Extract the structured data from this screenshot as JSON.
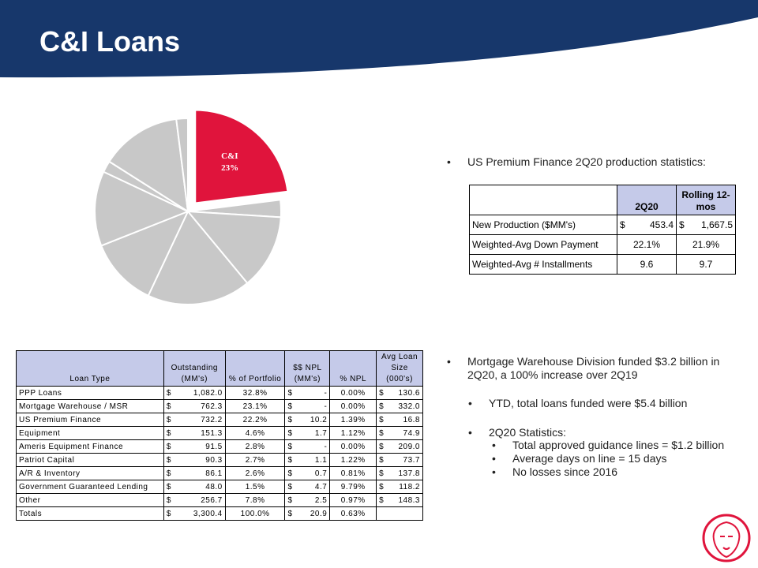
{
  "header": {
    "title": "C&I Loans"
  },
  "chart_data": {
    "type": "pie",
    "categories": [
      "C&I",
      null,
      null,
      null,
      null,
      null,
      null,
      null,
      null
    ],
    "values": [
      23,
      3,
      13,
      18,
      12,
      13,
      2,
      14,
      2
    ],
    "value_labels": [
      "23%",
      null,
      null,
      null,
      null,
      null,
      null,
      null,
      null
    ],
    "colors": [
      "#e0143c",
      "#c8c8c8",
      "#c8c8c8",
      "#c8c8c8",
      "#c8c8c8",
      "#c8c8c8",
      "#c8c8c8",
      "#c8c8c8",
      "#c8c8c8"
    ]
  },
  "bullets": [
    {
      "level": 0,
      "text": "US Premium Finance 2Q20 production statistics:"
    },
    {
      "level": 0,
      "text": "Mortgage Warehouse Division funded $3.2 billion in 2Q20, a 100% increase over 2Q19"
    },
    {
      "level": 1,
      "text": "YTD, total loans funded were $5.4 billion"
    },
    {
      "level": 1,
      "text": "2Q20 Statistics:"
    },
    {
      "level": 2,
      "text": "Total approved guidance lines = $1.2 billion"
    },
    {
      "level": 2,
      "text": "Average days on line = 15 days"
    },
    {
      "level": 2,
      "text": "No losses since 2016"
    }
  ],
  "production_table": {
    "headers": [
      "2Q20",
      "Rolling 12-mos"
    ],
    "rows": [
      [
        "New Production ($MM's)",
        [
          "$",
          "453.4"
        ],
        [
          "$",
          "1,667.5"
        ]
      ],
      [
        "Weighted-Avg Down Payment",
        "22.1%",
        "21.9%"
      ],
      [
        "Weighted-Avg # Installments",
        "9.6",
        "9.7"
      ]
    ]
  },
  "loan_table": {
    "headers": [
      "Loan Type",
      "Outstanding (MM's)",
      "% of Portfolio",
      "$$ NPL (MM's)",
      "% NPL",
      "Avg Loan Size (000's)"
    ],
    "rows": [
      [
        "PPP Loans",
        [
          "$",
          "1,082.0"
        ],
        "32.8%",
        [
          "$",
          "-"
        ],
        "0.00%",
        [
          "$",
          "130.6"
        ]
      ],
      [
        "Mortgage Warehouse / MSR",
        [
          "$",
          "762.3"
        ],
        "23.1%",
        [
          "$",
          "-"
        ],
        "0.00%",
        [
          "$",
          "332.0"
        ]
      ],
      [
        "US Premium Finance",
        [
          "$",
          "732.2"
        ],
        "22.2%",
        [
          "$",
          "10.2"
        ],
        "1.39%",
        [
          "$",
          "16.8"
        ]
      ],
      [
        "Equipment",
        [
          "$",
          "151.3"
        ],
        "4.6%",
        [
          "$",
          "1.7"
        ],
        "1.12%",
        [
          "$",
          "74.9"
        ]
      ],
      [
        "Ameris Equipment Finance",
        [
          "$",
          "91.5"
        ],
        "2.8%",
        [
          "$",
          "-"
        ],
        "0.00%",
        [
          "$",
          "209.0"
        ]
      ],
      [
        "Patriot Capital",
        [
          "$",
          "90.3"
        ],
        "2.7%",
        [
          "$",
          "1.1"
        ],
        "1.22%",
        [
          "$",
          "73.7"
        ]
      ],
      [
        "A/R & Inventory",
        [
          "$",
          "86.1"
        ],
        "2.6%",
        [
          "$",
          "0.7"
        ],
        "0.81%",
        [
          "$",
          "137.8"
        ]
      ],
      [
        "Government Guaranteed Lending",
        [
          "$",
          "48.0"
        ],
        "1.5%",
        [
          "$",
          "4.7"
        ],
        "9.79%",
        [
          "$",
          "118.2"
        ]
      ],
      [
        "Other",
        [
          "$",
          "256.7"
        ],
        "7.8%",
        [
          "$",
          "2.5"
        ],
        "0.97%",
        [
          "$",
          "148.3"
        ]
      ],
      [
        "Totals",
        [
          "$",
          "3,300.4"
        ],
        "100.0%",
        [
          "$",
          "20.9"
        ],
        "0.63%",
        null
      ]
    ]
  }
}
